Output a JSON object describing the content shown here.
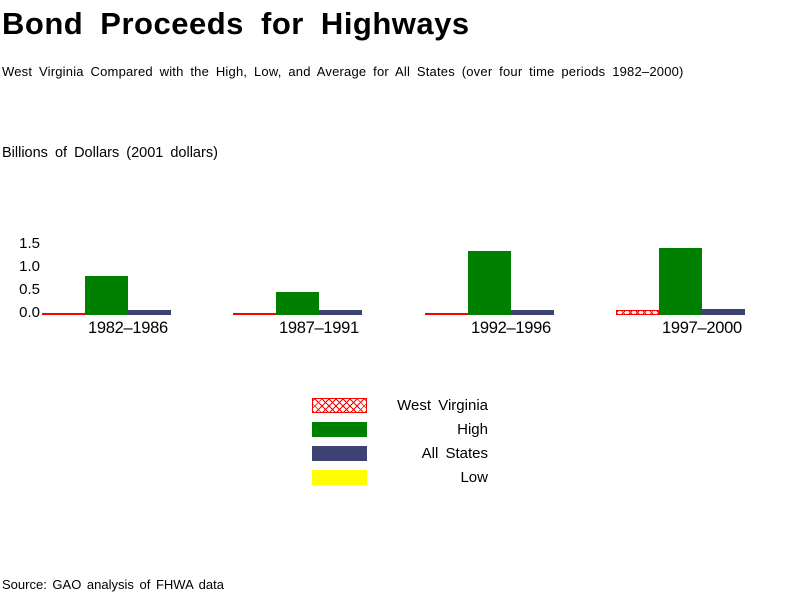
{
  "header": {
    "title": "Bond Proceeds for Highways",
    "subtitle": "West Virginia Compared with the High, Low, and Average for All States (over four time periods 1982–2000)"
  },
  "chart_data": {
    "type": "bar",
    "title": "Bond Proceeds for Highways",
    "subtitle": "West Virginia Compared with the High, Low, and Average for All States (over four time periods 1982–2000)",
    "ylabel": "Billions of Dollars (2001 dollars)",
    "xlabel": "",
    "categories": [
      "1982–1986",
      "1987–1991",
      "1992–1996",
      "1997–2000"
    ],
    "series": [
      {
        "name": "West Virginia",
        "color": "#ff0000",
        "pattern": "crosshatch",
        "values": [
          0.02,
          0.02,
          0.0,
          0.1
        ]
      },
      {
        "name": "High",
        "color": "#008000",
        "pattern": "solid",
        "values": [
          0.85,
          0.5,
          1.4,
          1.45
        ]
      },
      {
        "name": "All States",
        "color": "#3e4273",
        "pattern": "solid",
        "values": [
          0.1,
          0.1,
          0.1,
          0.12
        ]
      },
      {
        "name": "Low",
        "color": "#ffff00",
        "pattern": "solid",
        "values": [
          0.0,
          0.0,
          0.0,
          0.0
        ]
      }
    ],
    "ytick_labels": [
      "0.0",
      "0.5",
      "1.0",
      "1.5"
    ],
    "ylim": [
      0,
      1.5
    ],
    "grid": false,
    "axis_lines": false,
    "legend_position": "bottom-center"
  },
  "legend_note": {
    "items": [
      "West Virginia",
      "High",
      "All States",
      "Low"
    ]
  },
  "source_note": "Source: GAO analysis of FHWA data",
  "colors": {
    "west_virginia": "#ff0000",
    "high": "#008000",
    "all_states": "#3e4273",
    "low": "#ffff00",
    "background": "#ffffff",
    "text": "#000000"
  }
}
